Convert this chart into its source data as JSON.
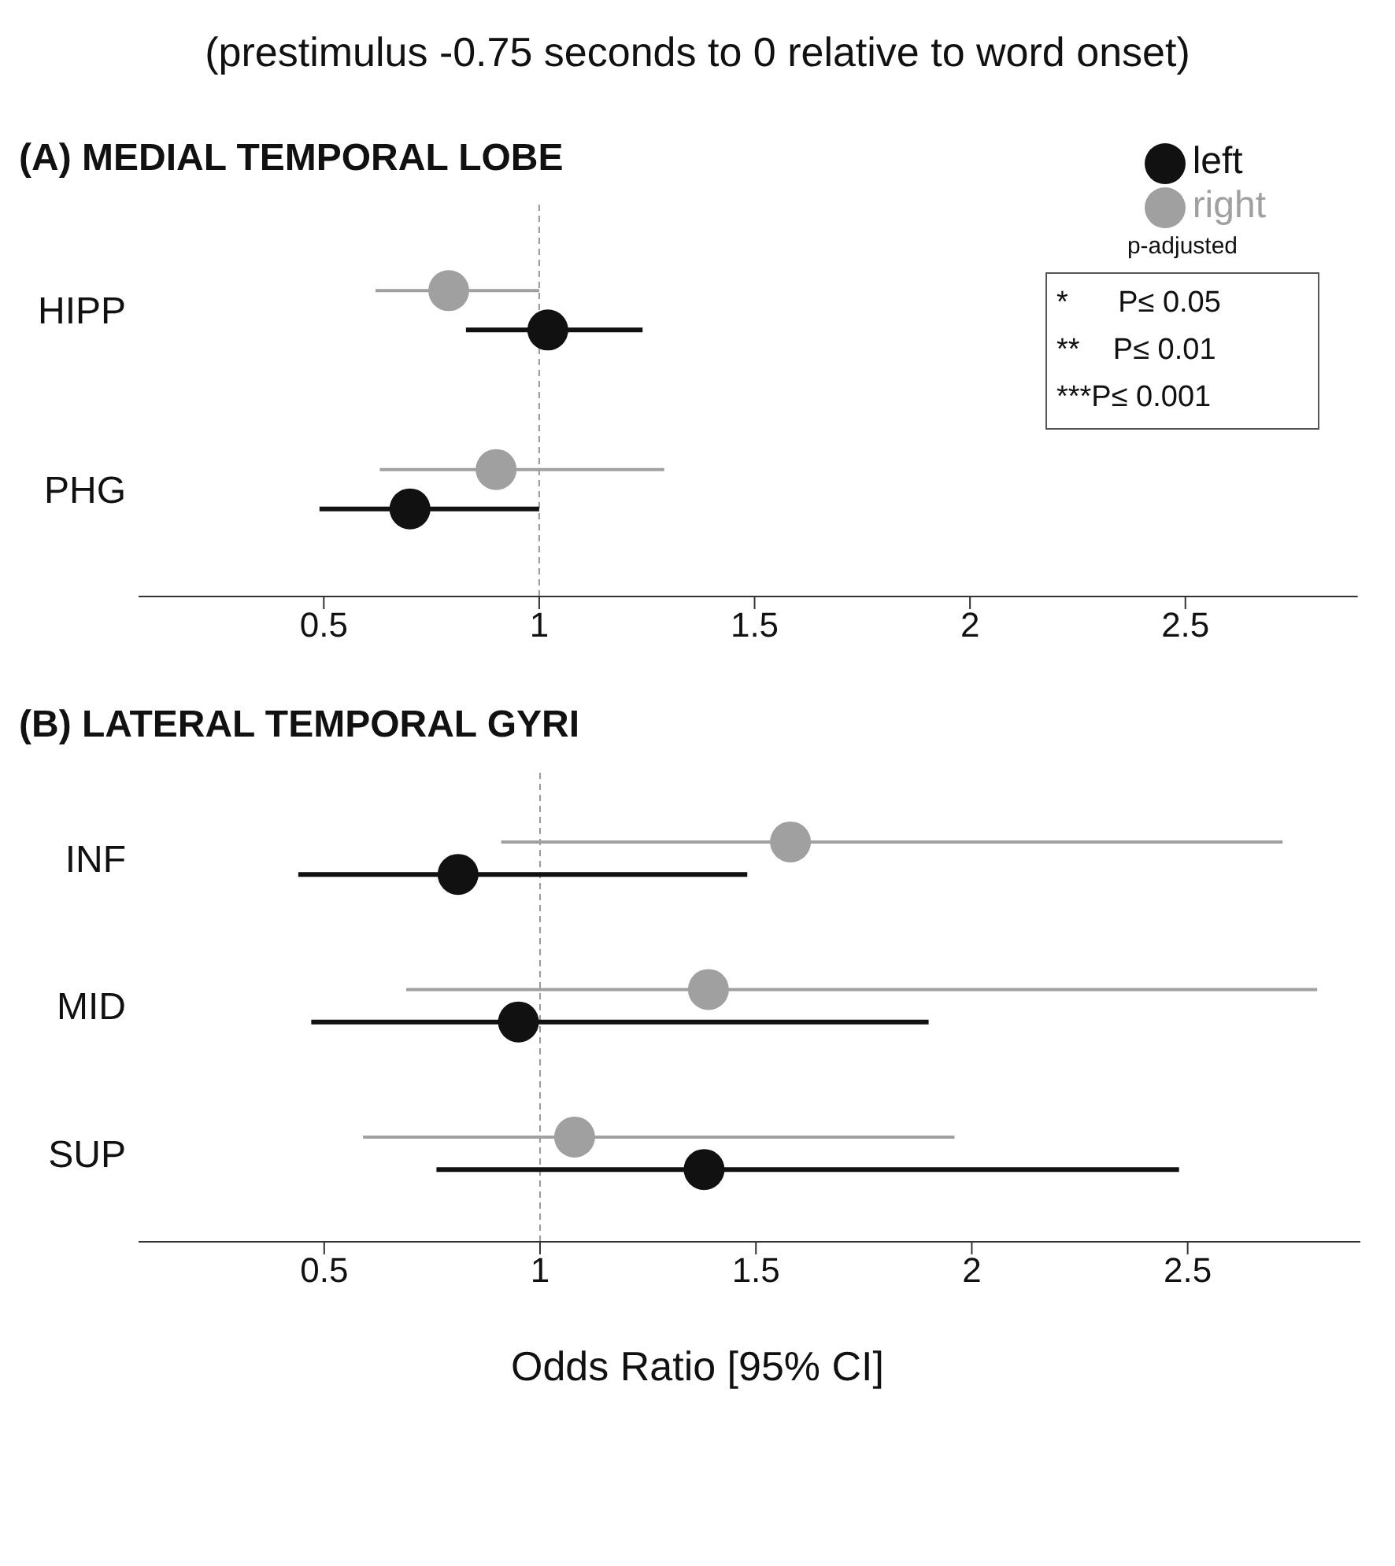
{
  "chart_data": [
    {
      "type": "scatter",
      "orientation": "horizontal",
      "subtitle": "(prestimulus -0.75 seconds to 0 relative to word onset)",
      "title": "(A) MEDIAL TEMPORAL LOBE",
      "categories": [
        "HIPP",
        "PHG"
      ],
      "series": [
        {
          "name": "left",
          "color": "#111111",
          "values": [
            1.02,
            0.7
          ],
          "errors": [
            [
              0.83,
              1.24
            ],
            [
              0.49,
              1.0
            ]
          ]
        },
        {
          "name": "right",
          "color": "#a0a0a0",
          "values": [
            0.79,
            0.9
          ],
          "errors": [
            [
              0.62,
              1.0
            ],
            [
              0.63,
              1.29
            ]
          ]
        }
      ],
      "xlim": [
        0.07,
        2.9
      ],
      "xticks": [
        0.5,
        1,
        1.5,
        2,
        2.5
      ],
      "ref_lines": [
        {
          "axis": "x",
          "value": 1,
          "line_style": "dashed",
          "color": "#999999"
        }
      ],
      "marker": "circle",
      "legend": "top right",
      "annotations": [
        "p-adjusted",
        "*      P≤ 0.05",
        "**    P≤ 0.01",
        "***P≤ 0.001"
      ]
    },
    {
      "type": "scatter",
      "orientation": "horizontal",
      "title": "(B) LATERAL TEMPORAL GYRI",
      "xlabel": "Odds Ratio [95% CI]",
      "categories": [
        "INF",
        "MID",
        "SUP"
      ],
      "series": [
        {
          "color": "#111111",
          "values": [
            0.81,
            0.95,
            1.38
          ],
          "errors": [
            [
              0.44,
              1.48
            ],
            [
              0.47,
              1.9
            ],
            [
              0.76,
              2.48
            ]
          ]
        },
        {
          "color": "#a0a0a0",
          "values": [
            1.58,
            1.39,
            1.08
          ],
          "errors": [
            [
              0.91,
              2.72
            ],
            [
              0.69,
              2.8
            ],
            [
              0.59,
              1.96
            ]
          ]
        }
      ],
      "xlim": [
        0.07,
        2.9
      ],
      "xticks": [
        0.5,
        1,
        1.5,
        2,
        2.5
      ],
      "ref_lines": [
        {
          "axis": "x",
          "value": 1,
          "line_style": "dashed",
          "color": "#999999"
        }
      ],
      "marker": "circle"
    }
  ]
}
